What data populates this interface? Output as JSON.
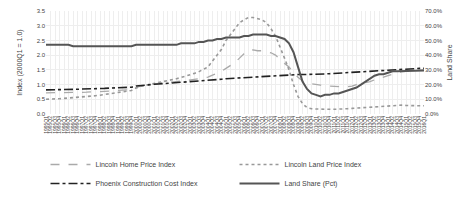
{
  "chart_data": {
    "type": "line",
    "ylabel": "Index (2000Q1 = 1.0)",
    "y2label": "Land Share",
    "ylim": [
      0.0,
      3.5
    ],
    "yticks": [
      {
        "value": 0.0,
        "label": "0.0"
      },
      0.5,
      {
        "value": 1.0,
        "label": "1.0"
      },
      1.5,
      {
        "value": 2.0,
        "label": "2.0"
      },
      2.5,
      {
        "value": 3.0,
        "label": "3.0"
      },
      3.5
    ],
    "y2lim": [
      0.0,
      0.7
    ],
    "y2ticks": [
      {
        "value": 0.0,
        "label": "0.0%"
      },
      {
        "value": 0.1,
        "label": "10.0%"
      },
      {
        "value": 0.2,
        "label": "20.0%"
      },
      {
        "value": 0.3,
        "label": "30.0%"
      },
      {
        "value": 0.4,
        "label": "40.0%"
      },
      {
        "value": 0.5,
        "label": "50.0%"
      },
      {
        "value": 0.6,
        "label": "60.0%"
      },
      {
        "value": 0.7,
        "label": "70.0%"
      }
    ],
    "grid": true,
    "legend": "bottom",
    "categories": [
      "1995Q1",
      "1995Q2",
      "1995Q3",
      "1995Q4",
      "1996Q1",
      "1996Q2",
      "1996Q3",
      "1996Q4",
      "1997Q1",
      "1997Q2",
      "1997Q3",
      "1997Q4",
      "1998Q1",
      "1998Q2",
      "1998Q3",
      "1998Q4",
      "1999Q1",
      "1999Q2",
      "1999Q3",
      "1999Q4",
      "2000Q1",
      "2000Q2",
      "2000Q3",
      "2000Q4",
      "2001Q1",
      "2001Q2",
      "2001Q3",
      "2001Q4",
      "2002Q1",
      "2002Q2",
      "2002Q3",
      "2002Q4",
      "2003Q1",
      "2003Q2",
      "2003Q3",
      "2003Q4",
      "2004Q1",
      "2004Q2",
      "2004Q3",
      "2004Q4",
      "2005Q1",
      "2005Q2",
      "2005Q3",
      "2005Q4",
      "2006Q1",
      "2006Q2",
      "2006Q3",
      "2006Q4",
      "2007Q1",
      "2007Q2",
      "2007Q3",
      "2007Q4",
      "2008Q1",
      "2008Q2",
      "2008Q3",
      "2008Q4",
      "2009Q1",
      "2009Q2",
      "2009Q3",
      "2009Q4",
      "2010Q1",
      "2010Q2",
      "2010Q3",
      "2010Q4",
      "2011Q1",
      "2011Q2",
      "2011Q3",
      "2011Q4",
      "2012Q1",
      "2012Q2",
      "2012Q3",
      "2012Q4",
      "2013Q1",
      "2013Q2",
      "2013Q3",
      "2013Q4",
      "2014Q1",
      "2014Q2",
      "2014Q3",
      "2014Q4",
      "2015Q1",
      "2015Q2",
      "2015Q3",
      "2015Q4",
      "2016Q1"
    ],
    "series": [
      {
        "name": "Lincoln Home Price Index",
        "color": "#aaaaaa",
        "line_style": "dashed",
        "values": [
          0.72,
          0.72,
          0.72,
          0.72,
          0.73,
          0.73,
          0.73,
          0.73,
          0.74,
          0.74,
          0.75,
          0.75,
          0.76,
          0.77,
          0.78,
          0.79,
          0.8,
          0.81,
          0.82,
          0.83,
          0.9,
          0.95,
          0.97,
          1.0,
          1.02,
          1.04,
          1.06,
          1.08,
          1.1,
          1.11,
          1.12,
          1.13,
          1.15,
          1.18,
          1.2,
          1.22,
          1.25,
          1.32,
          1.38,
          1.45,
          1.55,
          1.65,
          1.75,
          1.9,
          2.05,
          2.15,
          2.18,
          2.15,
          2.15,
          2.12,
          2.08,
          2.0,
          1.85,
          1.72,
          1.6,
          1.4,
          1.25,
          1.12,
          1.05,
          1.02,
          1.0,
          0.98,
          0.96,
          0.95,
          0.93,
          0.92,
          0.92,
          0.93,
          0.95,
          1.0,
          1.03,
          1.06,
          1.1,
          1.16,
          1.2,
          1.25,
          1.3,
          1.35,
          1.4,
          1.43,
          1.45,
          1.47,
          1.48,
          1.49,
          1.5
        ]
      },
      {
        "name": "Lincoln Land Price Index",
        "color": "#999999",
        "line_style": "dotted",
        "values": [
          0.5,
          0.5,
          0.51,
          0.52,
          0.53,
          0.54,
          0.55,
          0.56,
          0.57,
          0.58,
          0.6,
          0.62,
          0.64,
          0.66,
          0.68,
          0.7,
          0.72,
          0.74,
          0.76,
          0.8,
          0.88,
          0.94,
          0.97,
          1.0,
          1.03,
          1.06,
          1.09,
          1.12,
          1.16,
          1.2,
          1.24,
          1.28,
          1.33,
          1.38,
          1.44,
          1.52,
          1.6,
          1.8,
          2.0,
          2.2,
          2.5,
          2.7,
          2.9,
          3.1,
          3.2,
          3.28,
          3.28,
          3.25,
          3.2,
          3.1,
          2.9,
          2.65,
          2.3,
          1.9,
          1.5,
          1.0,
          0.6,
          0.35,
          0.22,
          0.18,
          0.17,
          0.16,
          0.16,
          0.16,
          0.16,
          0.16,
          0.17,
          0.18,
          0.19,
          0.2,
          0.22,
          0.24,
          0.25,
          0.26,
          0.27,
          0.28,
          0.29,
          0.3,
          0.3,
          0.3,
          0.29,
          0.28,
          0.28,
          0.28,
          0.28
        ]
      },
      {
        "name": "Phoenix Construction Cost Index",
        "color": "#222222",
        "line_style": "dashdot",
        "values": [
          0.82,
          0.82,
          0.83,
          0.83,
          0.83,
          0.84,
          0.84,
          0.84,
          0.85,
          0.85,
          0.86,
          0.86,
          0.87,
          0.87,
          0.88,
          0.89,
          0.89,
          0.9,
          0.91,
          0.91,
          0.95,
          0.97,
          0.98,
          1.0,
          1.01,
          1.02,
          1.03,
          1.05,
          1.06,
          1.07,
          1.08,
          1.09,
          1.09,
          1.1,
          1.11,
          1.12,
          1.13,
          1.15,
          1.17,
          1.18,
          1.2,
          1.21,
          1.22,
          1.23,
          1.24,
          1.25,
          1.26,
          1.27,
          1.27,
          1.28,
          1.29,
          1.3,
          1.31,
          1.32,
          1.33,
          1.34,
          1.34,
          1.34,
          1.34,
          1.35,
          1.35,
          1.36,
          1.36,
          1.37,
          1.38,
          1.39,
          1.4,
          1.41,
          1.41,
          1.42,
          1.43,
          1.43,
          1.44,
          1.45,
          1.46,
          1.47,
          1.48,
          1.49,
          1.51,
          1.52,
          1.53,
          1.54,
          1.55,
          1.55,
          1.55
        ]
      },
      {
        "name": "Land Share (Pct)",
        "color": "#555555",
        "line_style": "solid",
        "axis": "y2",
        "values": [
          0.47,
          0.47,
          0.47,
          0.47,
          0.47,
          0.47,
          0.46,
          0.46,
          0.46,
          0.46,
          0.46,
          0.46,
          0.46,
          0.46,
          0.46,
          0.46,
          0.46,
          0.46,
          0.46,
          0.46,
          0.47,
          0.47,
          0.47,
          0.47,
          0.47,
          0.47,
          0.47,
          0.47,
          0.47,
          0.47,
          0.48,
          0.48,
          0.48,
          0.48,
          0.49,
          0.49,
          0.5,
          0.5,
          0.51,
          0.51,
          0.52,
          0.52,
          0.52,
          0.52,
          0.53,
          0.53,
          0.54,
          0.54,
          0.54,
          0.54,
          0.53,
          0.53,
          0.52,
          0.51,
          0.48,
          0.42,
          0.32,
          0.22,
          0.17,
          0.14,
          0.13,
          0.12,
          0.13,
          0.13,
          0.14,
          0.14,
          0.15,
          0.16,
          0.17,
          0.18,
          0.2,
          0.22,
          0.24,
          0.26,
          0.27,
          0.27,
          0.28,
          0.29,
          0.29,
          0.29,
          0.29,
          0.29,
          0.29,
          0.29,
          0.295
        ]
      }
    ]
  }
}
